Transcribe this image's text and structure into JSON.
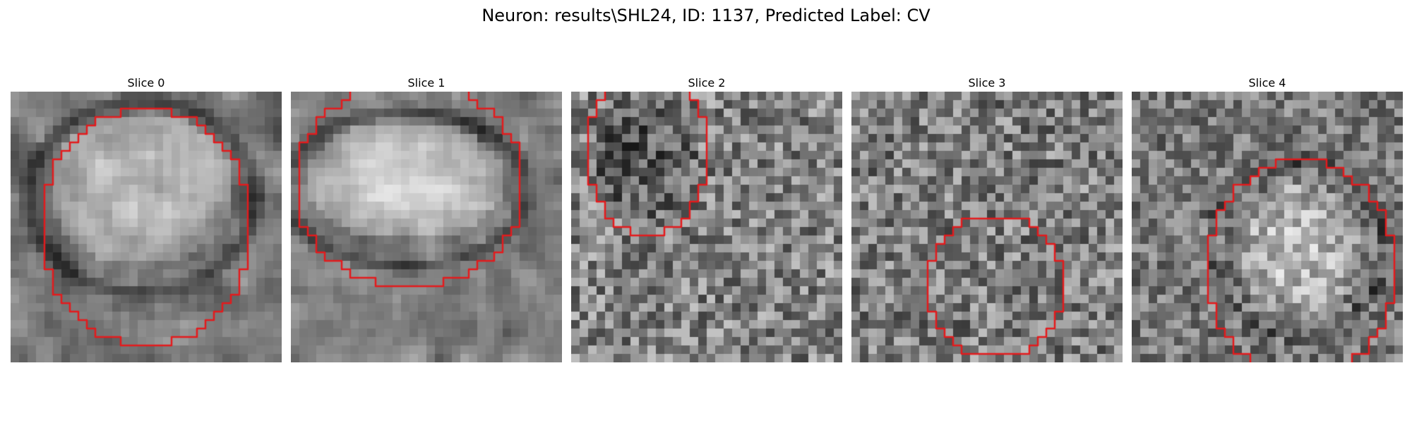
{
  "figure": {
    "title": "Neuron: results\\SHL24, ID: 1137, Predicted Label: CV",
    "contour_color": "#e41a1c"
  },
  "slices": [
    {
      "title": "Slice 0"
    },
    {
      "title": "Slice 1"
    },
    {
      "title": "Slice 2"
    },
    {
      "title": "Slice 3"
    },
    {
      "title": "Slice 4"
    }
  ]
}
